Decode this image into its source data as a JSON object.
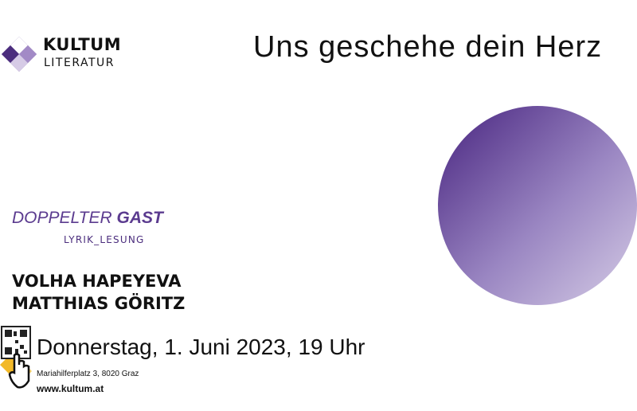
{
  "logo": {
    "name": "KULTUM",
    "subtitle": "LITERATUR"
  },
  "title": "Uns geschehe dein Herz",
  "series_label": {
    "first": "DOPPELTER",
    "second": "GAST"
  },
  "format": "LYRIK_LESUNG",
  "authors": [
    "VOLHA HAPEYEVA",
    "MATTHIAS GÖRITZ"
  ],
  "date": "Donnerstag, 1. Juni 2023, 19 Uhr",
  "address": "Mariahilferplatz 3, 8020 Graz",
  "website": "www.kultum.at"
}
